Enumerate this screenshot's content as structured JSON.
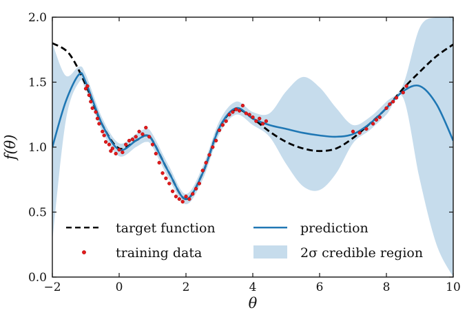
{
  "chart_data": {
    "type": "line",
    "title": "",
    "xlabel": "θ",
    "ylabel": "f(θ)",
    "xlim": [
      -2,
      10
    ],
    "ylim": [
      0.0,
      2.0
    ],
    "xticks": [
      -2,
      0,
      2,
      4,
      6,
      8,
      10
    ],
    "xtick_labels": [
      "−2",
      "0",
      "2",
      "4",
      "6",
      "8",
      "10"
    ],
    "yticks": [
      0.0,
      0.5,
      1.0,
      1.5,
      2.0
    ],
    "ytick_labels": [
      "0.0",
      "0.5",
      "1.0",
      "1.5",
      "2.0"
    ],
    "grid": false,
    "legend_position": "bottom-left",
    "legend": {
      "target": "target function",
      "training": "training data",
      "prediction": "prediction",
      "band": "2σ credible region"
    },
    "colors": {
      "target": "#000000",
      "prediction": "#1f77b4",
      "band": "#c6dcec",
      "training": "#e31a1c"
    },
    "series": [
      {
        "name": "target function",
        "style": "dashed",
        "x": [
          -2,
          -1.5,
          -1,
          -0.5,
          0,
          0.5,
          0.8,
          1,
          1.5,
          2,
          2.5,
          3,
          3.5,
          4,
          4.5,
          5,
          5.5,
          6,
          6.5,
          7,
          7.5,
          8,
          8.5,
          9,
          9.5,
          10
        ],
        "y": [
          1.8,
          1.72,
          1.48,
          1.17,
          0.99,
          1.05,
          1.09,
          1.05,
          0.8,
          0.6,
          0.8,
          1.15,
          1.29,
          1.22,
          1.12,
          1.04,
          0.99,
          0.97,
          0.99,
          1.07,
          1.18,
          1.3,
          1.45,
          1.58,
          1.7,
          1.79
        ]
      },
      {
        "name": "prediction",
        "style": "solid",
        "x": [
          -2,
          -1.6,
          -1.2,
          -1,
          -0.5,
          0,
          0.5,
          0.8,
          1,
          1.5,
          2,
          2.5,
          3,
          3.5,
          4,
          4.5,
          5,
          5.5,
          6,
          6.5,
          7,
          7.5,
          8,
          8.5,
          9,
          9.5,
          10
        ],
        "y": [
          1.0,
          1.35,
          1.56,
          1.5,
          1.17,
          0.98,
          1.05,
          1.09,
          1.05,
          0.8,
          0.6,
          0.8,
          1.15,
          1.3,
          1.22,
          1.17,
          1.14,
          1.11,
          1.09,
          1.08,
          1.1,
          1.18,
          1.3,
          1.43,
          1.47,
          1.33,
          1.05
        ]
      },
      {
        "name": "2σ credible region",
        "style": "band",
        "x": [
          -2,
          -1.6,
          -1.2,
          -1,
          -0.5,
          0,
          0.5,
          0.8,
          1,
          1.5,
          2,
          2.5,
          3,
          3.5,
          4,
          4.5,
          5,
          5.5,
          6,
          6.5,
          7,
          7.5,
          8,
          8.5,
          9,
          9.5,
          10
        ],
        "lower": [
          0.28,
          1.2,
          1.5,
          1.44,
          1.12,
          0.93,
          1.0,
          1.04,
          1.0,
          0.75,
          0.56,
          0.75,
          1.1,
          1.25,
          1.17,
          1.08,
          0.87,
          0.7,
          0.67,
          0.8,
          1.03,
          1.13,
          1.25,
          1.38,
          0.75,
          0.25,
          0.0
        ],
        "upper": [
          1.8,
          1.55,
          1.62,
          1.56,
          1.22,
          1.03,
          1.1,
          1.14,
          1.1,
          0.85,
          0.64,
          0.85,
          1.2,
          1.35,
          1.27,
          1.26,
          1.43,
          1.54,
          1.46,
          1.3,
          1.17,
          1.23,
          1.35,
          1.48,
          1.92,
          2.0,
          2.0
        ]
      },
      {
        "name": "training data",
        "style": "points",
        "x": [
          -1.0,
          -0.95,
          -0.9,
          -0.85,
          -0.8,
          -0.7,
          -0.65,
          -0.6,
          -0.5,
          -0.45,
          -0.4,
          -0.3,
          -0.25,
          -0.2,
          -0.1,
          0.0,
          0.1,
          0.2,
          0.3,
          0.4,
          0.5,
          0.6,
          0.7,
          0.8,
          0.9,
          1.0,
          1.1,
          1.2,
          1.3,
          1.4,
          1.5,
          1.6,
          1.7,
          1.8,
          1.9,
          2.0,
          2.1,
          2.2,
          2.3,
          2.4,
          2.5,
          2.6,
          2.7,
          2.8,
          2.9,
          3.0,
          3.1,
          3.2,
          3.3,
          3.4,
          3.5,
          3.6,
          3.7,
          3.8,
          3.9,
          4.0,
          4.1,
          4.2,
          4.3,
          4.4,
          7.0,
          7.2,
          7.4,
          7.6,
          7.7,
          7.8,
          8.0,
          8.1,
          8.2,
          8.3,
          8.5,
          8.6
        ],
        "y": [
          1.45,
          1.47,
          1.4,
          1.35,
          1.3,
          1.27,
          1.22,
          1.18,
          1.12,
          1.09,
          1.04,
          1.02,
          0.97,
          0.99,
          0.95,
          0.98,
          0.96,
          1.02,
          1.05,
          1.06,
          1.08,
          1.12,
          1.1,
          1.15,
          1.08,
          1.02,
          0.95,
          0.88,
          0.8,
          0.76,
          0.72,
          0.66,
          0.62,
          0.6,
          0.58,
          0.62,
          0.6,
          0.64,
          0.68,
          0.72,
          0.82,
          0.88,
          0.94,
          1.0,
          1.05,
          1.13,
          1.17,
          1.2,
          1.25,
          1.27,
          1.29,
          1.28,
          1.32,
          1.26,
          1.25,
          1.23,
          1.2,
          1.22,
          1.18,
          1.2,
          1.12,
          1.11,
          1.14,
          1.18,
          1.21,
          1.23,
          1.3,
          1.33,
          1.35,
          1.38,
          1.42,
          1.47
        ]
      }
    ]
  }
}
